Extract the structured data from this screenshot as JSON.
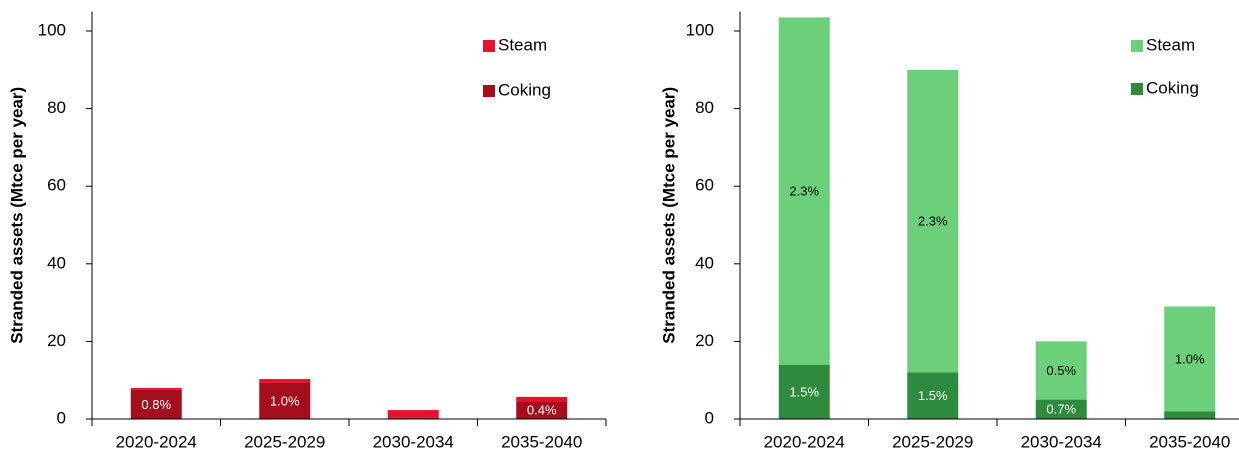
{
  "chart_data": [
    {
      "type": "bar",
      "stacked": true,
      "y_label": "Stranded assets (Mtce per year)",
      "categories": [
        "2020-2024",
        "2025-2029",
        "2030-2034",
        "2035-2040"
      ],
      "series": [
        {
          "name": "Coking",
          "color": "#a50e1c",
          "values": [
            7.5,
            9.3,
            0.3,
            4.5
          ],
          "share_labels": [
            "0.8%",
            "1.0%",
            null,
            "0.4%"
          ],
          "label_color": "#ffffff"
        },
        {
          "name": "Steam",
          "color": "#e8112d",
          "values": [
            0.5,
            1.0,
            2.0,
            1.2
          ],
          "share_labels": [
            null,
            null,
            null,
            null
          ],
          "label_color": "#000000"
        }
      ],
      "ylim": [
        0,
        105
      ],
      "yticks": [
        0,
        20,
        40,
        60,
        80,
        100
      ],
      "legend": "upper right"
    },
    {
      "type": "bar",
      "stacked": true,
      "y_label": "Stranded assets (Mtce per year)",
      "categories": [
        "2020-2024",
        "2025-2029",
        "2030-2034",
        "2035-2040"
      ],
      "series": [
        {
          "name": "Coking",
          "color": "#2e8b3e",
          "values": [
            14,
            12,
            5,
            2
          ],
          "share_labels": [
            "1.5%",
            "1.5%",
            "0.7%",
            null
          ],
          "label_color": "#ffffff"
        },
        {
          "name": "Steam",
          "color": "#6ccf7a",
          "values": [
            89.5,
            78,
            15,
            27
          ],
          "share_labels": [
            "2.3%",
            "2.3%",
            "0.5%",
            "1.0%"
          ],
          "label_color": "#000000"
        }
      ],
      "ylim": [
        0,
        105
      ],
      "yticks": [
        0,
        20,
        40,
        60,
        80,
        100
      ],
      "legend": "upper right"
    }
  ]
}
